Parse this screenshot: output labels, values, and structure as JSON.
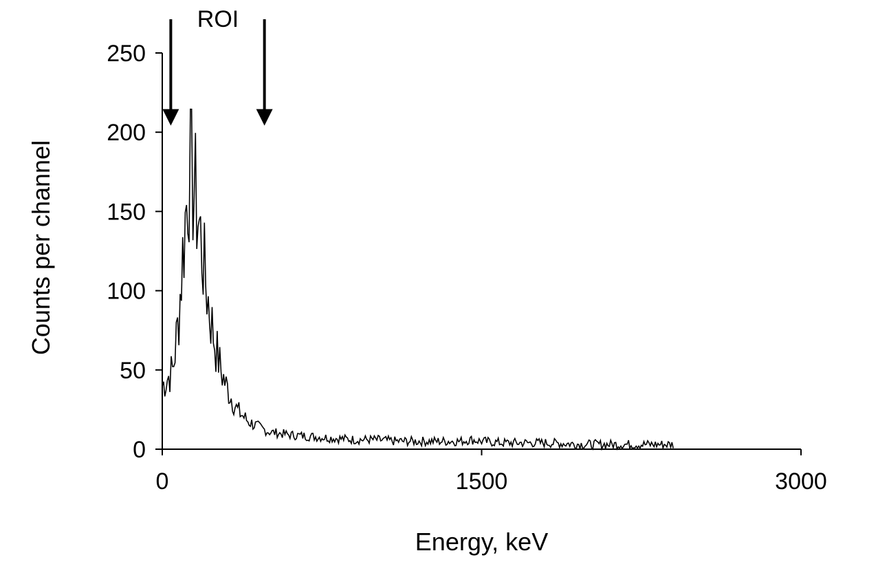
{
  "chart_data": {
    "type": "line",
    "title": "",
    "xlabel": "Energy, keV",
    "ylabel": "Counts per channel",
    "xlim": [
      0,
      3000
    ],
    "ylim": [
      0,
      250
    ],
    "x_ticks": [
      0,
      1500,
      3000
    ],
    "y_ticks": [
      0,
      50,
      100,
      150,
      200,
      250
    ],
    "grid": false,
    "legend": "none",
    "line_color": "#000000",
    "annotations": [
      {
        "text": "ROI",
        "type": "label"
      },
      {
        "type": "arrow",
        "x": 40,
        "direction": "down",
        "y_tip": 205
      },
      {
        "type": "arrow",
        "x": 480,
        "direction": "down",
        "y_tip": 205
      }
    ],
    "series": [
      {
        "x": [
          0,
          25,
          50,
          75,
          100,
          125,
          150,
          175,
          200,
          225,
          250,
          275,
          300,
          350,
          400,
          450,
          500,
          600,
          700,
          800,
          900,
          1000,
          1100,
          1200,
          1300,
          1400,
          1450,
          1500,
          1600,
          1800,
          2000,
          2200,
          2400
        ],
        "values": [
          40,
          45,
          50,
          80,
          130,
          175,
          165,
          140,
          110,
          85,
          65,
          50,
          40,
          25,
          18,
          14,
          11,
          9,
          8,
          7,
          6,
          6,
          5,
          5,
          5,
          5,
          6,
          5,
          4,
          4,
          3,
          3,
          3
        ]
      }
    ]
  }
}
